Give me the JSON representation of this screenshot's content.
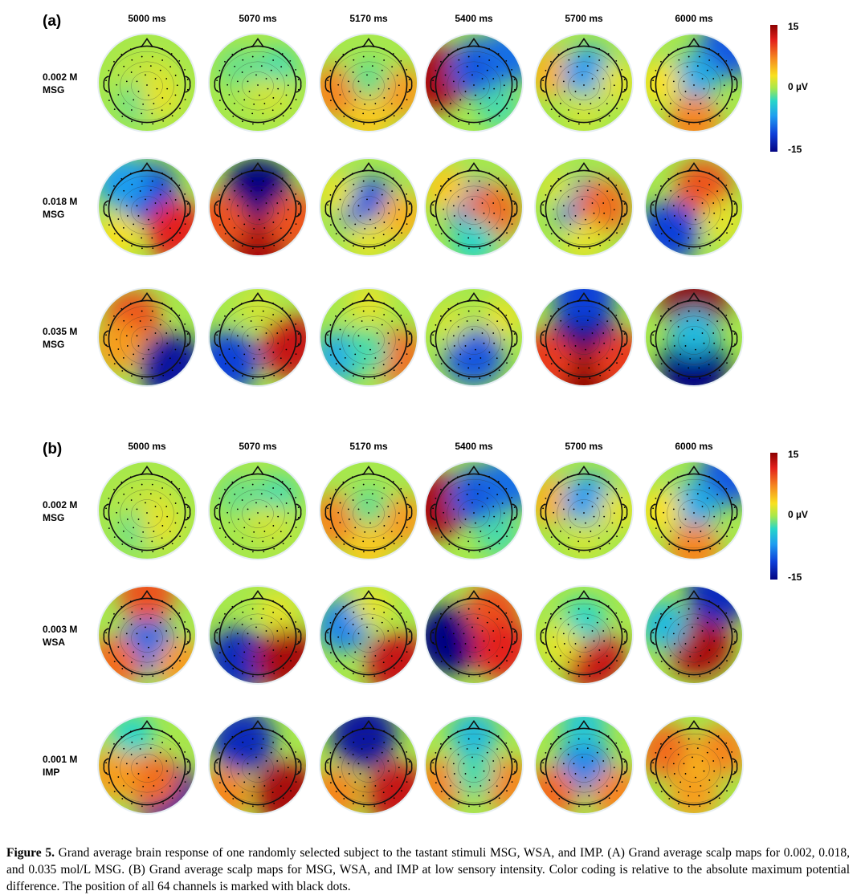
{
  "panels": [
    {
      "label": "(a)",
      "times": [
        "5000 ms",
        "5070 ms",
        "5170 ms",
        "5400 ms",
        "5700 ms",
        "6000 ms"
      ],
      "rows": [
        {
          "line1": "0.002 M",
          "line2": "MSG",
          "maps": [
            [
              [
                -0.3,
                0.2,
                1
              ],
              [
                0.2,
                0.15,
                2
              ],
              [
                -0.2,
                -0.4,
                -2
              ],
              [
                0.3,
                -0.3,
                3
              ],
              [
                0,
                0,
                0
              ]
            ],
            [
              [
                0,
                0,
                2
              ],
              [
                -0.4,
                0.3,
                -2
              ],
              [
                0.4,
                0.3,
                -3
              ],
              [
                0.3,
                -0.3,
                2
              ],
              [
                0,
                0,
                0
              ]
            ],
            [
              [
                -0.7,
                -0.2,
                8
              ],
              [
                0.7,
                -0.2,
                7
              ],
              [
                0,
                -0.8,
                5
              ],
              [
                0,
                0.1,
                -2
              ],
              [
                0,
                0,
                0
              ]
            ],
            [
              [
                -0.8,
                0.1,
                14
              ],
              [
                0.1,
                0.3,
                -11
              ],
              [
                0.8,
                0.6,
                -10
              ],
              [
                0.5,
                -0.5,
                -3
              ],
              [
                0,
                0,
                0
              ]
            ],
            [
              [
                -0.7,
                0.2,
                6
              ],
              [
                0.1,
                0.2,
                -8
              ],
              [
                0.7,
                0,
                3
              ],
              [
                0,
                -0.6,
                2
              ],
              [
                0,
                0,
                0
              ]
            ],
            [
              [
                0.7,
                0.7,
                -11
              ],
              [
                0,
                0.1,
                -7
              ],
              [
                -0.7,
                0,
                4
              ],
              [
                0,
                -0.8,
                8
              ],
              [
                0,
                0,
                0
              ]
            ]
          ]
        },
        {
          "line1": "0.018 M",
          "line2": "MSG",
          "maps": [
            [
              [
                0,
                0.3,
                -12
              ],
              [
                -0.5,
                0.5,
                -8
              ],
              [
                0.6,
                -0.5,
                12
              ],
              [
                -0.6,
                -0.6,
                4
              ],
              [
                0,
                0,
                0
              ]
            ],
            [
              [
                0,
                0.3,
                -15
              ],
              [
                0,
                -0.85,
                14
              ],
              [
                0.8,
                -0.3,
                10
              ],
              [
                -0.8,
                -0.3,
                10
              ],
              [
                0,
                0,
                0
              ]
            ],
            [
              [
                0,
                0,
                -11
              ],
              [
                -0.7,
                0.3,
                3
              ],
              [
                0.7,
                -0.2,
                6
              ],
              [
                0,
                -0.7,
                3
              ],
              [
                0,
                0,
                0
              ]
            ],
            [
              [
                0,
                0,
                -9
              ],
              [
                0.4,
                -0.1,
                9
              ],
              [
                -0.6,
                0.4,
                5
              ],
              [
                0,
                -0.7,
                -4
              ],
              [
                0,
                0,
                0
              ]
            ],
            [
              [
                0,
                0,
                -10
              ],
              [
                0.4,
                0,
                9
              ],
              [
                -0.6,
                0.4,
                2
              ],
              [
                0,
                -0.7,
                3
              ],
              [
                0,
                0,
                0
              ]
            ],
            [
              [
                0.2,
                0.4,
                10
              ],
              [
                -0.5,
                -0.5,
                -12
              ],
              [
                0.6,
                -0.3,
                3
              ],
              [
                0,
                0,
                0
              ],
              [
                0,
                0,
                0
              ]
            ]
          ]
        },
        {
          "line1": "0.035 M",
          "line2": "MSG",
          "maps": [
            [
              [
                0.5,
                -0.6,
                -14
              ],
              [
                -0.3,
                0.4,
                10
              ],
              [
                -0.6,
                -0.2,
                7
              ],
              [
                0,
                0,
                0
              ],
              [
                0,
                0,
                0
              ]
            ],
            [
              [
                -0.6,
                -0.5,
                -12
              ],
              [
                0.7,
                -0.2,
                13
              ],
              [
                0,
                0.6,
                2
              ],
              [
                0,
                0,
                0
              ],
              [
                0,
                0,
                0
              ]
            ],
            [
              [
                0.6,
                -0.4,
                9
              ],
              [
                -0.6,
                -0.4,
                -7
              ],
              [
                0,
                0.7,
                3
              ],
              [
                0,
                -0.3,
                -3
              ],
              [
                0,
                0,
                0
              ]
            ],
            [
              [
                0,
                -0.4,
                -11
              ],
              [
                -0.5,
                0.3,
                2
              ],
              [
                0.6,
                0.4,
                3
              ],
              [
                0,
                0,
                0
              ],
              [
                0,
                0,
                0
              ]
            ],
            [
              [
                0,
                0,
                -15
              ],
              [
                0,
                0.85,
                -12
              ],
              [
                0,
                -0.85,
                15
              ],
              [
                -0.8,
                -0.5,
                11
              ],
              [
                0.8,
                -0.5,
                11
              ]
            ],
            [
              [
                0,
                0.7,
                15
              ],
              [
                0,
                -0.6,
                -15
              ],
              [
                0,
                0.1,
                -6
              ],
              [
                0,
                0,
                0
              ],
              [
                0,
                0,
                0
              ]
            ]
          ]
        }
      ]
    },
    {
      "label": "(b)",
      "times": [
        "5000 ms",
        "5070 ms",
        "5170 ms",
        "5400 ms",
        "5700 ms",
        "6000 ms"
      ],
      "rows": [
        {
          "line1": "0.002 M",
          "line2": "MSG",
          "maps": [
            [
              [
                -0.3,
                0.2,
                1
              ],
              [
                0.2,
                0.15,
                2
              ],
              [
                -0.2,
                -0.4,
                -2
              ],
              [
                0.3,
                -0.3,
                3
              ],
              [
                0,
                0,
                0
              ]
            ],
            [
              [
                0,
                0,
                2
              ],
              [
                -0.4,
                0.3,
                -2
              ],
              [
                0.4,
                0.3,
                -3
              ],
              [
                0.3,
                -0.3,
                2
              ],
              [
                0,
                0,
                0
              ]
            ],
            [
              [
                -0.7,
                -0.2,
                8
              ],
              [
                0.7,
                -0.2,
                7
              ],
              [
                0,
                -0.8,
                5
              ],
              [
                0,
                0.1,
                -2
              ],
              [
                0,
                0,
                0
              ]
            ],
            [
              [
                -0.8,
                0.1,
                14
              ],
              [
                0.1,
                0.3,
                -11
              ],
              [
                0.8,
                0.6,
                -10
              ],
              [
                0.5,
                -0.5,
                -3
              ],
              [
                0,
                0,
                0
              ]
            ],
            [
              [
                -0.7,
                0.2,
                6
              ],
              [
                0.1,
                0.2,
                -8
              ],
              [
                0.7,
                0,
                3
              ],
              [
                0,
                -0.6,
                2
              ],
              [
                0,
                0,
                0
              ]
            ],
            [
              [
                0.7,
                0.7,
                -11
              ],
              [
                0,
                0.1,
                -7
              ],
              [
                -0.7,
                0,
                4
              ],
              [
                0,
                -0.8,
                8
              ],
              [
                0,
                0,
                0
              ]
            ]
          ]
        },
        {
          "line1": "0.003 M",
          "line2": "WSA",
          "maps": [
            [
              [
                0,
                -0.2,
                -10
              ],
              [
                0,
                0.85,
                10
              ],
              [
                -0.7,
                -0.6,
                9
              ],
              [
                0.7,
                -0.6,
                7
              ],
              [
                0,
                0,
                0
              ]
            ],
            [
              [
                -0.4,
                -0.5,
                -13
              ],
              [
                0.6,
                -0.5,
                14
              ],
              [
                0.4,
                0.5,
                3
              ],
              [
                0,
                0,
                0
              ],
              [
                0,
                0,
                0
              ]
            ],
            [
              [
                -0.5,
                0.2,
                -9
              ],
              [
                0.6,
                -0.6,
                13
              ],
              [
                0.1,
                0.6,
                3
              ],
              [
                0,
                0,
                0
              ],
              [
                0,
                0,
                0
              ]
            ],
            [
              [
                -0.5,
                -0.1,
                -15
              ],
              [
                0.4,
                0.5,
                10
              ],
              [
                0.6,
                -0.3,
                12
              ],
              [
                0,
                0,
                0
              ],
              [
                0,
                0,
                0
              ]
            ],
            [
              [
                0.2,
                -0.5,
                13
              ],
              [
                0,
                0.3,
                -4
              ],
              [
                -0.5,
                -0.2,
                3
              ],
              [
                0,
                0,
                0
              ],
              [
                0,
                0,
                0
              ]
            ],
            [
              [
                0.1,
                -0.2,
                14
              ],
              [
                0.5,
                0.85,
                -13
              ],
              [
                -0.6,
                0.2,
                -6
              ],
              [
                0,
                0,
                0
              ],
              [
                0,
                0,
                0
              ]
            ]
          ]
        },
        {
          "line1": "0.001 M",
          "line2": "IMP",
          "maps": [
            [
              [
                0.4,
                -0.6,
                -14
              ],
              [
                -0.3,
                0.6,
                -4
              ],
              [
                0.1,
                -0.3,
                9
              ],
              [
                -0.7,
                -0.2,
                7
              ],
              [
                0,
                0,
                0
              ]
            ],
            [
              [
                -0.3,
                0.5,
                -13
              ],
              [
                0.6,
                -0.6,
                14
              ],
              [
                -0.7,
                -0.6,
                8
              ],
              [
                0,
                0,
                0
              ],
              [
                0,
                0,
                0
              ]
            ],
            [
              [
                -0.1,
                0.6,
                -14
              ],
              [
                0.6,
                -0.6,
                13
              ],
              [
                -0.7,
                -0.6,
                8
              ],
              [
                0,
                0,
                0
              ],
              [
                0,
                0,
                0
              ]
            ],
            [
              [
                0,
                0.6,
                -6
              ],
              [
                -0.7,
                -0.4,
                8
              ],
              [
                0.7,
                -0.4,
                8
              ],
              [
                0,
                -0.2,
                -3
              ],
              [
                0,
                0,
                0
              ]
            ],
            [
              [
                0,
                0,
                -9
              ],
              [
                0,
                0.8,
                -5
              ],
              [
                -0.7,
                -0.6,
                9
              ],
              [
                0.7,
                -0.6,
                8
              ],
              [
                0,
                0,
                0
              ]
            ],
            [
              [
                0,
                0,
                4
              ],
              [
                -0.6,
                0.3,
                9
              ],
              [
                0.6,
                0.3,
                8
              ],
              [
                0,
                -0.6,
                7
              ],
              [
                0,
                0,
                0
              ]
            ]
          ]
        }
      ]
    }
  ],
  "colorbar": {
    "max_label": "15",
    "zero_label": "0 µV",
    "min_label": "-15"
  },
  "caption": {
    "figure": "Figure 5.",
    "text": " Grand average brain response of one randomly selected subject to the tastant stimuli MSG, WSA, and IMP. (A) Grand average scalp maps for 0.002, 0.018, and 0.035 mol/L MSG. (B) Grand average scalp maps for MSG, WSA, and IMP at low sensory intensity. Color coding is relative to the absolute maximum potential difference. The position of all 64 channels is marked with black dots."
  }
}
